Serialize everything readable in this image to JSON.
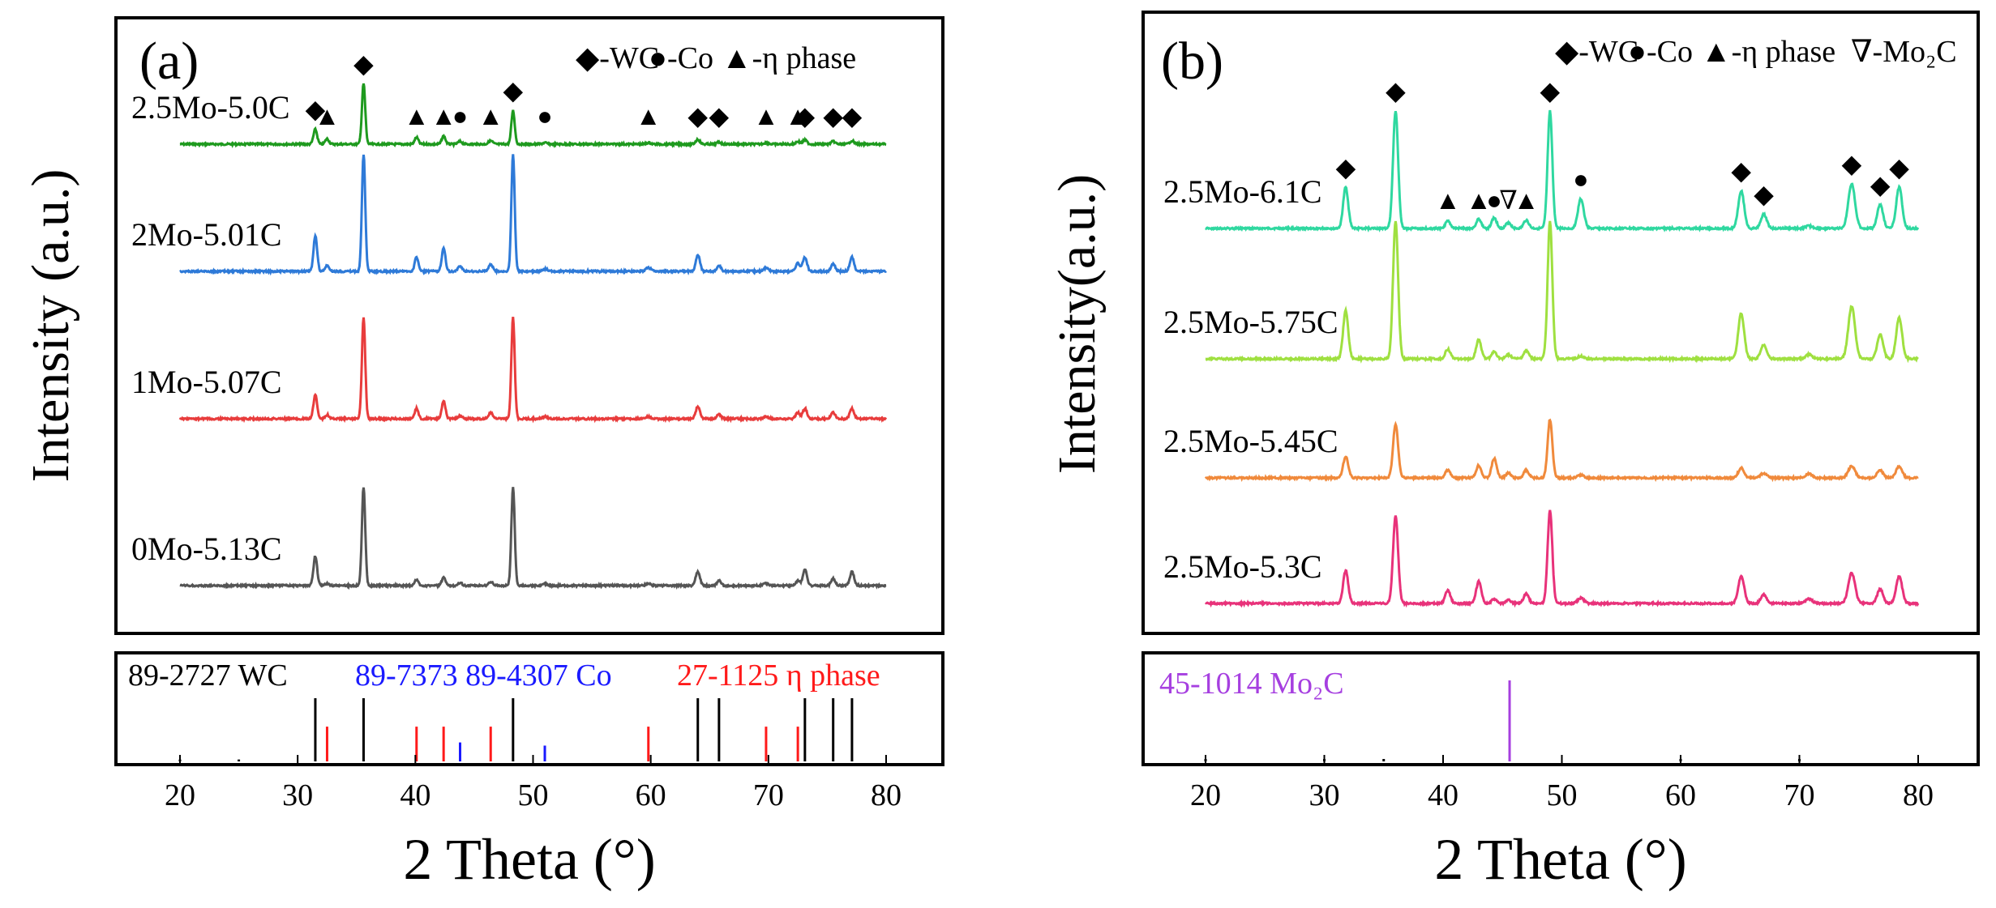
{
  "figure": {
    "colors": {
      "frame": "#000000",
      "text": "#000000",
      "ref_wc": "#000000",
      "ref_co": "#1a1aff",
      "ref_eta": "#ff1a1a",
      "ref_mo2c": "#a63fe0",
      "eta_label_color": "#ff1a1a",
      "co_label_color": "#1a1aff"
    }
  },
  "chart_data": [
    {
      "type": "line",
      "panel_label": "(a)",
      "xlabel": "2 Theta (°)",
      "ylabel": "Intensity (a.u.)",
      "xlim": [
        15,
        85
      ],
      "xticks": [
        20,
        30,
        40,
        50,
        60,
        70,
        80
      ],
      "xtick_labels": [
        "20",
        "30",
        "40",
        "50",
        "60",
        "70",
        "80"
      ],
      "legend": [
        {
          "symbol": "◆",
          "text": "-WC"
        },
        {
          "symbol": "●",
          "text": "-Co"
        },
        {
          "symbol": "▲",
          "text": "-η phase"
        }
      ],
      "peaks": [
        {
          "theta": 31.5,
          "w": 0.22
        },
        {
          "theta": 32.5,
          "w": 0.22
        },
        {
          "theta": 35.6,
          "w": 0.2
        },
        {
          "theta": 40.1,
          "w": 0.22
        },
        {
          "theta": 42.4,
          "w": 0.22
        },
        {
          "theta": 43.8,
          "w": 0.25
        },
        {
          "theta": 46.4,
          "w": 0.25
        },
        {
          "theta": 48.3,
          "w": 0.2
        },
        {
          "theta": 51.0,
          "w": 0.3
        },
        {
          "theta": 59.8,
          "w": 0.3
        },
        {
          "theta": 64.0,
          "w": 0.25
        },
        {
          "theta": 65.8,
          "w": 0.25
        },
        {
          "theta": 69.8,
          "w": 0.3
        },
        {
          "theta": 72.5,
          "w": 0.25
        },
        {
          "theta": 73.1,
          "w": 0.25
        },
        {
          "theta": 75.5,
          "w": 0.25
        },
        {
          "theta": 77.1,
          "w": 0.25
        }
      ],
      "series": [
        {
          "name": "2.5Mo-5.0C",
          "color": "#1e9a1e",
          "offset": 3,
          "values": [
            0.22,
            0.08,
            0.9,
            0.1,
            0.12,
            0.04,
            0.05,
            0.5,
            0.02,
            0.02,
            0.07,
            0.03,
            0.02,
            0.04,
            0.06,
            0.04,
            0.05
          ]
        },
        {
          "name": "2Mo-5.01C",
          "color": "#2e7ad8",
          "offset": 2,
          "values": [
            0.3,
            0.05,
            1.0,
            0.12,
            0.2,
            0.04,
            0.06,
            1.0,
            0.02,
            0.03,
            0.14,
            0.05,
            0.03,
            0.07,
            0.12,
            0.06,
            0.12
          ]
        },
        {
          "name": "1Mo-5.07C",
          "color": "#e83c3c",
          "offset": 1,
          "values": [
            0.24,
            0.04,
            1.0,
            0.1,
            0.18,
            0.03,
            0.06,
            1.0,
            0.02,
            0.02,
            0.12,
            0.04,
            0.02,
            0.06,
            0.1,
            0.06,
            0.1
          ]
        },
        {
          "name": "0Mo-5.13C",
          "color": "#555555",
          "offset": 0,
          "values": [
            0.3,
            0.02,
            1.0,
            0.06,
            0.08,
            0.03,
            0.04,
            1.0,
            0.02,
            0.02,
            0.14,
            0.05,
            0.02,
            0.05,
            0.16,
            0.07,
            0.14
          ]
        }
      ],
      "markers_on": "2.5Mo-5.0C",
      "markers": [
        {
          "symbol": "◆",
          "theta": 31.5
        },
        {
          "symbol": "▲",
          "theta": 32.5
        },
        {
          "symbol": "◆",
          "theta": 35.6
        },
        {
          "symbol": "▲",
          "theta": 40.1
        },
        {
          "symbol": "▲",
          "theta": 42.4
        },
        {
          "symbol": "●",
          "theta": 43.8
        },
        {
          "symbol": "▲",
          "theta": 46.4
        },
        {
          "symbol": "◆",
          "theta": 48.3
        },
        {
          "symbol": "●",
          "theta": 51.0
        },
        {
          "symbol": "▲",
          "theta": 59.8
        },
        {
          "symbol": "◆",
          "theta": 64.0
        },
        {
          "symbol": "◆",
          "theta": 65.8
        },
        {
          "symbol": "▲",
          "theta": 69.8
        },
        {
          "symbol": "▲",
          "theta": 72.5
        },
        {
          "symbol": "◆",
          "theta": 73.1
        },
        {
          "symbol": "◆",
          "theta": 75.5
        },
        {
          "symbol": "◆",
          "theta": 77.1
        }
      ],
      "reference": {
        "labels": [
          {
            "text": "89-2727 WC",
            "color": "#000000"
          },
          {
            "text": "89-7373 89-4307 Co",
            "color": "#1a1aff"
          },
          {
            "text": "27-1125 η phase",
            "color": "#ff1a1a"
          }
        ],
        "lines": [
          {
            "theta": 20.0,
            "h": 0.03,
            "color": "#000000"
          },
          {
            "theta": 25.0,
            "h": 0.03,
            "color": "#000000"
          },
          {
            "theta": 31.5,
            "h": 1.0,
            "color": "#000000"
          },
          {
            "theta": 32.5,
            "h": 0.55,
            "color": "#ff1a1a"
          },
          {
            "theta": 35.6,
            "h": 1.0,
            "color": "#000000"
          },
          {
            "theta": 40.1,
            "h": 0.55,
            "color": "#ff1a1a"
          },
          {
            "theta": 42.4,
            "h": 0.55,
            "color": "#ff1a1a"
          },
          {
            "theta": 43.8,
            "h": 0.3,
            "color": "#1a1aff"
          },
          {
            "theta": 46.4,
            "h": 0.55,
            "color": "#ff1a1a"
          },
          {
            "theta": 48.3,
            "h": 1.0,
            "color": "#000000"
          },
          {
            "theta": 51.0,
            "h": 0.25,
            "color": "#1a1aff"
          },
          {
            "theta": 59.8,
            "h": 0.55,
            "color": "#ff1a1a"
          },
          {
            "theta": 64.0,
            "h": 1.0,
            "color": "#000000"
          },
          {
            "theta": 65.8,
            "h": 1.0,
            "color": "#000000"
          },
          {
            "theta": 69.8,
            "h": 0.55,
            "color": "#ff1a1a"
          },
          {
            "theta": 72.5,
            "h": 0.55,
            "color": "#ff1a1a"
          },
          {
            "theta": 73.1,
            "h": 1.0,
            "color": "#000000"
          },
          {
            "theta": 75.5,
            "h": 1.0,
            "color": "#000000"
          },
          {
            "theta": 77.1,
            "h": 1.0,
            "color": "#000000"
          }
        ]
      }
    },
    {
      "type": "line",
      "panel_label": "(b)",
      "xlabel": "2 Theta (°)",
      "ylabel": "Intensity(a.u.)",
      "xlim": [
        15,
        85
      ],
      "xticks": [
        20,
        30,
        40,
        50,
        60,
        70,
        80
      ],
      "xtick_labels": [
        "20",
        "30",
        "40",
        "50",
        "60",
        "70",
        "80"
      ],
      "legend": [
        {
          "symbol": "◆",
          "text": "-WC"
        },
        {
          "symbol": "●",
          "text": "-Co"
        },
        {
          "symbol": "▲",
          "text": "-η phase"
        },
        {
          "symbol": "∇",
          "text": "-Mo₂C"
        }
      ],
      "peaks": [
        {
          "theta": 31.8,
          "w": 0.3
        },
        {
          "theta": 36.0,
          "w": 0.3
        },
        {
          "theta": 40.4,
          "w": 0.3
        },
        {
          "theta": 43.0,
          "w": 0.3
        },
        {
          "theta": 44.3,
          "w": 0.3
        },
        {
          "theta": 45.5,
          "w": 0.3
        },
        {
          "theta": 47.0,
          "w": 0.3
        },
        {
          "theta": 49.0,
          "w": 0.28
        },
        {
          "theta": 51.6,
          "w": 0.35
        },
        {
          "theta": 65.1,
          "w": 0.35
        },
        {
          "theta": 67.0,
          "w": 0.35
        },
        {
          "theta": 70.8,
          "w": 0.4
        },
        {
          "theta": 74.4,
          "w": 0.4
        },
        {
          "theta": 76.8,
          "w": 0.35
        },
        {
          "theta": 78.4,
          "w": 0.35
        }
      ],
      "series": [
        {
          "name": "2.5Mo-6.1C",
          "color": "#2fd8a0",
          "offset": 3,
          "values": [
            0.35,
            1.0,
            0.06,
            0.08,
            0.09,
            0.05,
            0.07,
            1.0,
            0.25,
            0.32,
            0.12,
            0.02,
            0.38,
            0.2,
            0.35
          ]
        },
        {
          "name": "2.5Mo-5.75C",
          "color": "#9fe040",
          "offset": 2,
          "values": [
            0.35,
            1.0,
            0.07,
            0.14,
            0.05,
            0.03,
            0.06,
            1.0,
            0.02,
            0.33,
            0.1,
            0.03,
            0.38,
            0.18,
            0.3
          ]
        },
        {
          "name": "2.5Mo-5.45C",
          "color": "#f08a3c",
          "offset": 1,
          "values": [
            0.22,
            0.55,
            0.08,
            0.13,
            0.2,
            0.05,
            0.08,
            0.6,
            0.03,
            0.1,
            0.05,
            0.04,
            0.12,
            0.08,
            0.12
          ]
        },
        {
          "name": "2.5Mo-5.3C",
          "color": "#e8327a",
          "offset": 0,
          "values": [
            0.3,
            0.8,
            0.12,
            0.2,
            0.04,
            0.03,
            0.09,
            0.85,
            0.05,
            0.25,
            0.08,
            0.04,
            0.28,
            0.13,
            0.25
          ]
        }
      ],
      "markers_on": "2.5Mo-6.1C",
      "markers": [
        {
          "symbol": "◆",
          "theta": 31.8
        },
        {
          "symbol": "◆",
          "theta": 36.0
        },
        {
          "symbol": "▲",
          "theta": 40.4
        },
        {
          "symbol": "▲",
          "theta": 43.0
        },
        {
          "symbol": "●",
          "theta": 44.3
        },
        {
          "symbol": "∇",
          "theta": 45.5
        },
        {
          "symbol": "▲",
          "theta": 47.0
        },
        {
          "symbol": "◆",
          "theta": 49.0
        },
        {
          "symbol": "●",
          "theta": 51.6
        },
        {
          "symbol": "◆",
          "theta": 65.1
        },
        {
          "symbol": "◆",
          "theta": 67.0
        },
        {
          "symbol": "◆",
          "theta": 74.4
        },
        {
          "symbol": "◆",
          "theta": 76.8
        },
        {
          "symbol": "◆",
          "theta": 78.4
        }
      ],
      "reference": {
        "labels": [
          {
            "text": "45-1014 Mo₂C",
            "color": "#a63fe0"
          }
        ],
        "lines": [
          {
            "theta": 20.0,
            "h": 0.03,
            "color": "#000000"
          },
          {
            "theta": 30.0,
            "h": 0.03,
            "color": "#000000"
          },
          {
            "theta": 35.0,
            "h": 0.03,
            "color": "#000000"
          },
          {
            "theta": 45.6,
            "h": 1.0,
            "color": "#a63fe0"
          },
          {
            "theta": 60.0,
            "h": 0.03,
            "color": "#000000"
          },
          {
            "theta": 70.0,
            "h": 0.03,
            "color": "#000000"
          }
        ]
      }
    }
  ]
}
